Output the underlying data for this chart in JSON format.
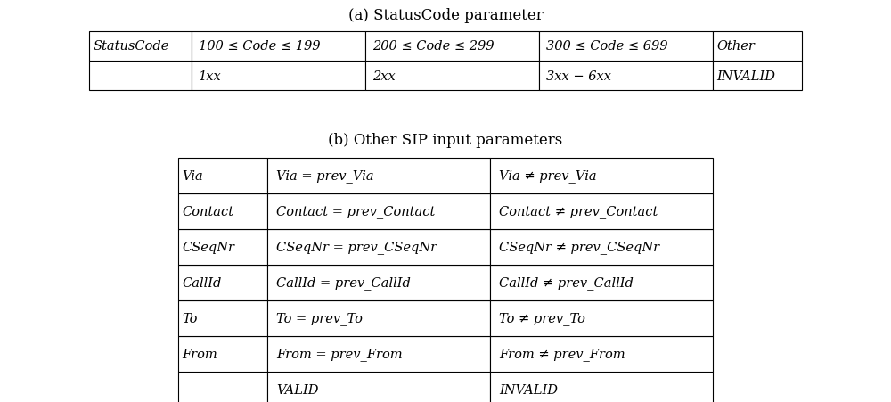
{
  "title_a": "(a) StatusCode parameter",
  "title_b": "(b) Other SIP input parameters",
  "table_a_headers": [
    "",
    "1xx",
    "2xx",
    "3xx − 6xx",
    "INVALID"
  ],
  "table_a_rows": [
    [
      "StatusCode",
      "100 ≤ Code ≤ 199",
      "200 ≤ Code ≤ 299",
      "300 ≤ Code ≤ 699",
      "Other"
    ]
  ],
  "table_b_headers": [
    "",
    "VALID",
    "INVALID"
  ],
  "table_b_rows": [
    [
      "From",
      "From = prev_From",
      "From ≠ prev_From"
    ],
    [
      "To",
      "To = prev_To",
      "To ≠ prev_To"
    ],
    [
      "CallId",
      "CallId = prev_CallId",
      "CallId ≠ prev_CallId"
    ],
    [
      "CSeqNr",
      "CSeqNr = prev_CSeqNr",
      "CSeqNr ≠ prev_CSeqNr"
    ],
    [
      "Contact",
      "Contact = prev_Contact",
      "Contact ≠ prev_Contact"
    ],
    [
      "Via",
      "Via = prev_Via",
      "Via ≠ prev_Via"
    ]
  ],
  "bg_color": "#ffffff",
  "text_color": "#000000",
  "font_size": 10.5,
  "title_font_size": 12
}
